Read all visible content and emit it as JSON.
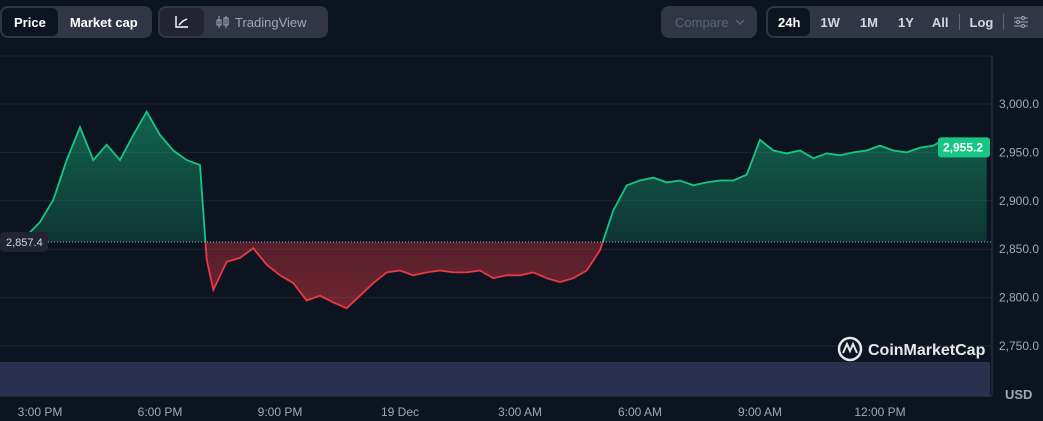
{
  "toolbar": {
    "type_tabs": [
      "Price",
      "Market cap"
    ],
    "active_type": "Price",
    "chart_tabs": {
      "line_icon": "line-chart-icon",
      "tradingview": "TradingView",
      "tradingview_icon": "candlestick-icon"
    },
    "compare": "Compare",
    "ranges": [
      "24h",
      "1W",
      "1M",
      "1Y",
      "All"
    ],
    "active_range": "24h",
    "log": "Log",
    "settings_icon": "sliders-icon"
  },
  "brand": "CoinMarketCap",
  "currency": "USD",
  "colors": {
    "up": "#16c784",
    "down": "#ea3943",
    "volume": "#2b3553",
    "background": "#0d1421"
  },
  "chart_data": {
    "type": "line",
    "ylim": [
      2750,
      3050
    ],
    "yticks": [
      "3,000.0",
      "2,950.0",
      "2,900.0",
      "2,850.0",
      "2,800.0",
      "2,750.0"
    ],
    "xticks": [
      "3:00 PM",
      "6:00 PM",
      "9:00 PM",
      "19 Dec",
      "3:00 AM",
      "6:00 AM",
      "9:00 AM",
      "12:00 PM"
    ],
    "baseline": 2857.4,
    "baseline_label": "2,857.4",
    "last": 2955.2,
    "last_label": "2,955.2",
    "grid": true,
    "x": [
      "18 Dec 14:00",
      "14:20",
      "14:40",
      "15:00",
      "15:20",
      "15:40",
      "16:00",
      "16:20",
      "16:40",
      "17:00",
      "17:20",
      "17:40",
      "18:00",
      "18:20",
      "18:40",
      "19:00",
      "19:10",
      "19:20",
      "19:40",
      "20:00",
      "20:20",
      "20:40",
      "21:00",
      "21:20",
      "21:40",
      "22:00",
      "22:20",
      "22:40",
      "23:00",
      "23:20",
      "23:40",
      "19 Dec 00:00",
      "00:20",
      "00:40",
      "01:00",
      "01:20",
      "01:40",
      "02:00",
      "02:20",
      "02:40",
      "03:00",
      "03:20",
      "03:40",
      "04:00",
      "04:20",
      "04:40",
      "05:00",
      "05:20",
      "05:40",
      "06:00",
      "06:20",
      "06:40",
      "07:00",
      "07:20",
      "07:40",
      "08:00",
      "08:20",
      "08:40",
      "09:00",
      "09:20",
      "09:40",
      "10:00",
      "10:20",
      "10:40",
      "11:00",
      "11:20",
      "11:40",
      "12:00",
      "12:20",
      "12:40",
      "13:00",
      "13:20",
      "13:40",
      "14:00",
      "14:20",
      "14:40"
    ],
    "values": [
      2862,
      2859,
      2864,
      2878,
      2901,
      2942,
      2976,
      2942,
      2958,
      2942,
      2968,
      2992,
      2968,
      2952,
      2942,
      2937,
      2839,
      2808,
      2837,
      2841,
      2851,
      2834,
      2823,
      2815,
      2797,
      2802,
      2795,
      2789,
      2802,
      2815,
      2826,
      2828,
      2823,
      2826,
      2828,
      2826,
      2826,
      2828,
      2820,
      2823,
      2823,
      2826,
      2820,
      2816,
      2820,
      2828,
      2849,
      2890,
      2916,
      2921,
      2924,
      2919,
      2921,
      2916,
      2919,
      2921,
      2921,
      2927,
      2963,
      2952,
      2949,
      2952,
      2944,
      2949,
      2947,
      2950,
      2952,
      2957,
      2952,
      2950,
      2955,
      2957,
      2965,
      2957,
      2956,
      2955.2
    ]
  }
}
